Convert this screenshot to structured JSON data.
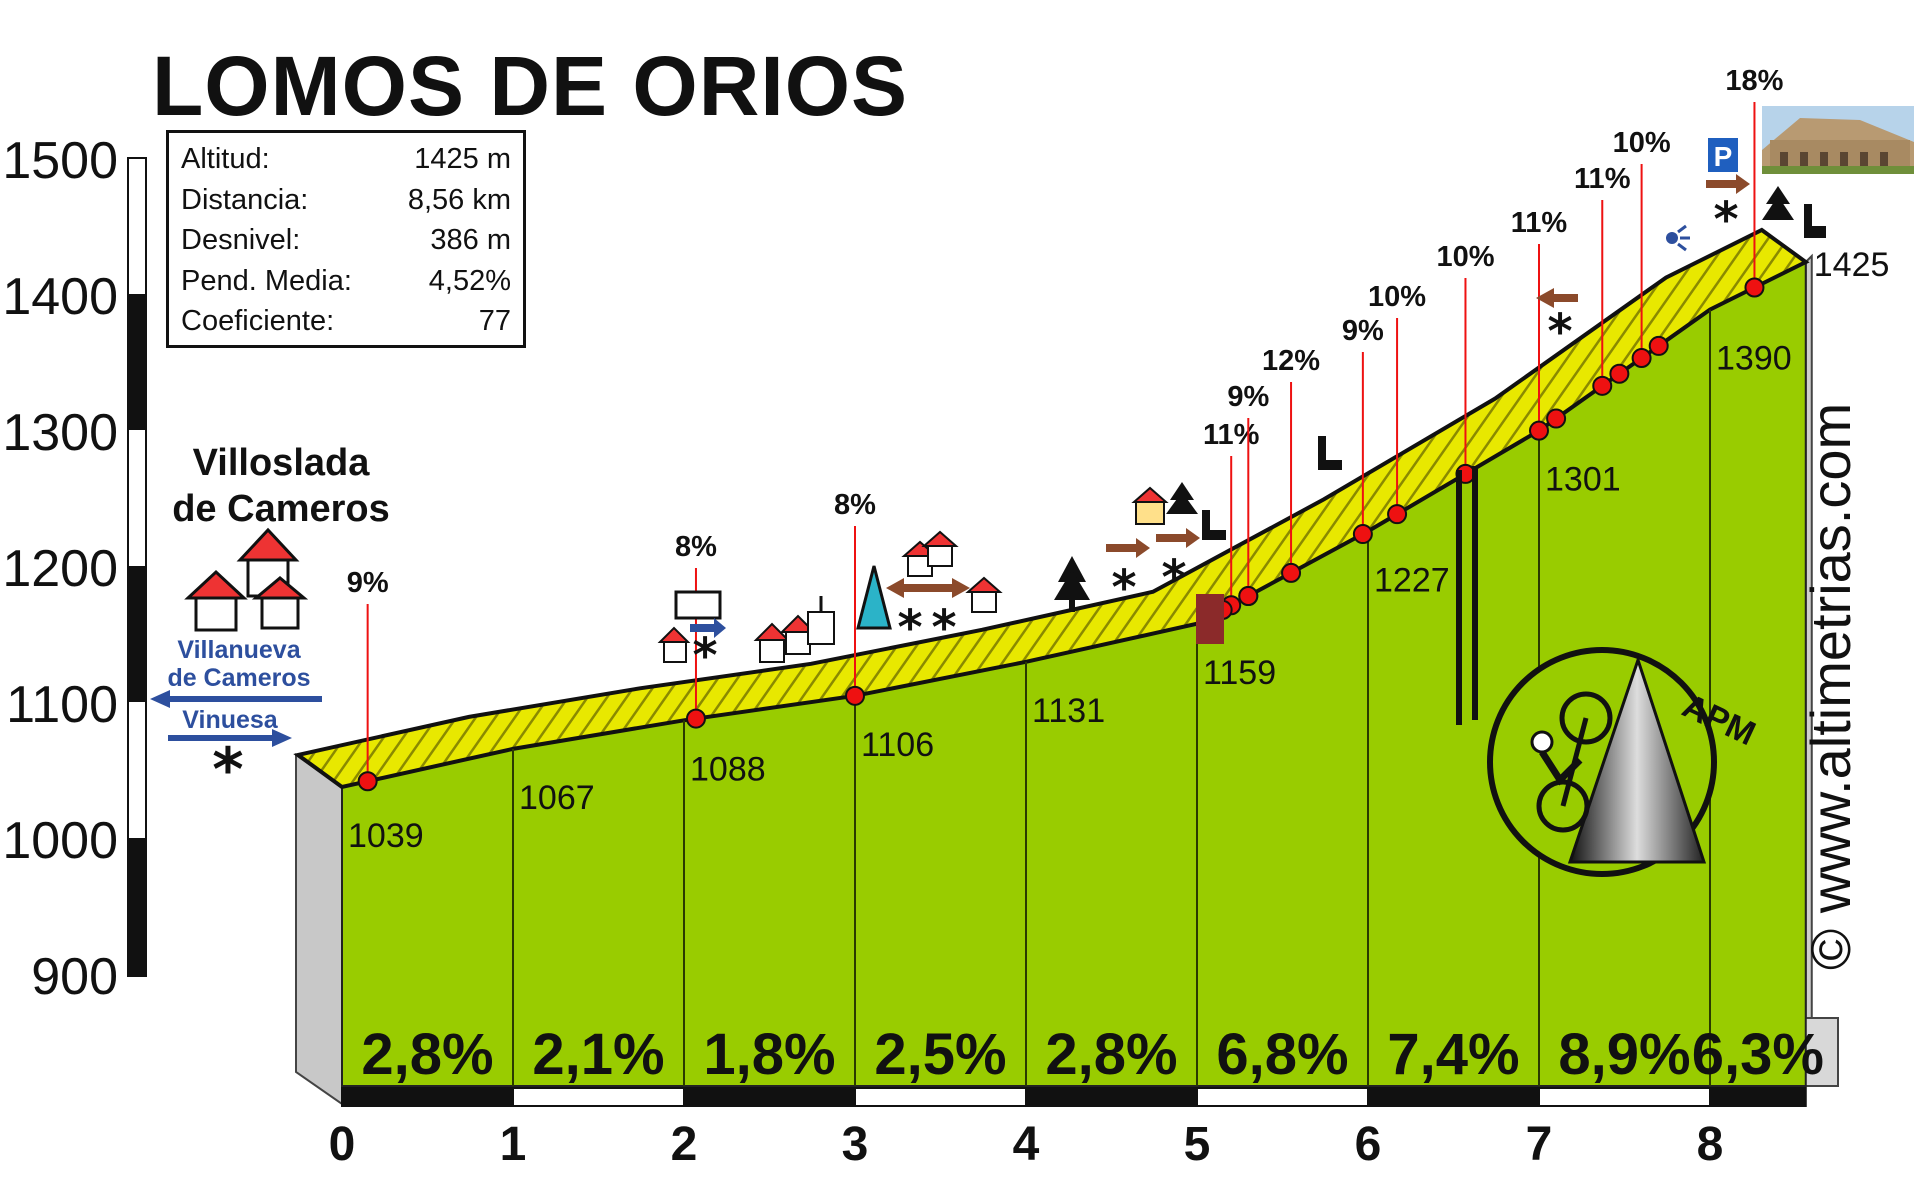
{
  "header": {
    "title": "LOMOS DE ORIOS"
  },
  "info": [
    {
      "label": "Altitud:",
      "value": "1425 m"
    },
    {
      "label": "Distancia:",
      "value": "8,56 km"
    },
    {
      "label": "Desnivel:",
      "value": "386 m"
    },
    {
      "label": "Pend. Media:",
      "value": "4,52%"
    },
    {
      "label": "Coeficiente:",
      "value": "77"
    }
  ],
  "start_town": {
    "line1": "Villoslada",
    "line2": "de Cameros"
  },
  "roads": {
    "west": "Villanueva de Cameros",
    "west_line1": "Villanueva",
    "west_line2": "de Cameros",
    "east": "Vinuesa"
  },
  "watermark": "© www.altimetrias.com",
  "logo": "APM",
  "colors": {
    "fill": "#99cc00",
    "road": "#e6e600",
    "marker": "#ee1111",
    "arrow": "#2d4f9e"
  },
  "chart_data": {
    "type": "area",
    "title": "LOMOS DE ORIOS",
    "xlabel": "",
    "ylabel": "",
    "xlim": [
      0,
      8.56
    ],
    "ylim": [
      900,
      1500
    ],
    "x_ticks": [
      0,
      1,
      2,
      3,
      4,
      5,
      6,
      7,
      8
    ],
    "y_ticks": [
      900,
      1000,
      1100,
      1200,
      1300,
      1400,
      1500
    ],
    "x": [
      0,
      1,
      2,
      3,
      4,
      5,
      6,
      7,
      8,
      8.56
    ],
    "elevation": [
      1039,
      1067,
      1088,
      1106,
      1131,
      1159,
      1227,
      1301,
      1390,
      1425
    ],
    "km_elevation_labels": [
      "1039",
      "1067",
      "1088",
      "1106",
      "1131",
      "1159",
      "1227",
      "1301",
      "1390",
      "1425"
    ],
    "segment_gradients": [
      "2,8%",
      "2,1%",
      "1,8%",
      "2,5%",
      "2,8%",
      "6,8%",
      "7,4%",
      "8,9%",
      "6,3%"
    ],
    "max_gradients": [
      {
        "km": 0.15,
        "label": "9%"
      },
      {
        "km": 2.07,
        "label": "8%"
      },
      {
        "km": 3.0,
        "label": "8%"
      },
      {
        "km": 5.2,
        "label": "11%"
      },
      {
        "km": 5.3,
        "label": "9%"
      },
      {
        "km": 5.55,
        "label": "12%"
      },
      {
        "km": 5.97,
        "label": "9%"
      },
      {
        "km": 6.17,
        "label": "10%"
      },
      {
        "km": 6.57,
        "label": "10%"
      },
      {
        "km": 7.0,
        "label": "11%"
      },
      {
        "km": 7.37,
        "label": "11%"
      },
      {
        "km": 7.6,
        "label": "10%"
      },
      {
        "km": 8.26,
        "label": "18%"
      }
    ],
    "extra_markers_km": [
      5.15,
      5.3,
      7.1,
      7.47,
      7.7
    ],
    "grid": false,
    "legend": "none"
  }
}
